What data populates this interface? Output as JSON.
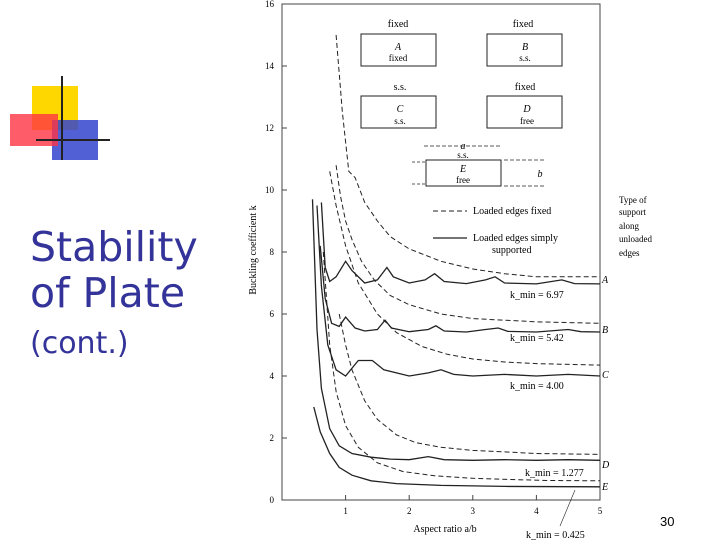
{
  "slide": {
    "title_line1": "Stability",
    "title_line2": "of Plate",
    "subtitle": "(cont.)",
    "page_number": "30"
  },
  "colors": {
    "title": "#333399",
    "logo_yellow": "#ffd700",
    "logo_red": "#ff3344",
    "logo_blue": "#3344cc",
    "curve": "#222222"
  },
  "chart_data": {
    "type": "line",
    "xlabel": "Aspect ratio a/b",
    "ylabel": "Buckling coefficient k",
    "xlim": [
      0,
      5
    ],
    "ylim": [
      0,
      16
    ],
    "x_ticks": [
      "1",
      "2",
      "3",
      "4",
      "5"
    ],
    "y_ticks": [
      "0",
      "2",
      "4",
      "6",
      "8",
      "10",
      "12",
      "14",
      "16"
    ],
    "legend": {
      "dashed": "Loaded edges fixed",
      "solid_line1": "Loaded edges simply",
      "solid_line2": "supported",
      "placement": "right"
    },
    "support_note": [
      "Type of",
      "support",
      "along",
      "unloaded",
      "edges"
    ],
    "cases": [
      {
        "letter": "A",
        "top": "fixed",
        "bottom": "fixed"
      },
      {
        "letter": "B",
        "top": "fixed",
        "bottom": "s.s."
      },
      {
        "letter": "C",
        "top": "s.s.",
        "bottom": "s.s."
      },
      {
        "letter": "D",
        "top": "fixed",
        "bottom": "free"
      },
      {
        "letter": "E",
        "top": "s.s.",
        "bottom": "free"
      }
    ],
    "plate_dims": {
      "a": "a",
      "b": "b"
    },
    "annotations": [
      {
        "label": "k_min = 6.97",
        "case": "A"
      },
      {
        "label": "k_min = 5.42",
        "case": "B"
      },
      {
        "label": "k_min = 4.00",
        "case": "C"
      },
      {
        "label": "k_min = 1.277",
        "case": "D"
      },
      {
        "label": "k_min = 0.425",
        "case": "E"
      }
    ],
    "series": [
      {
        "name": "A",
        "style": "solid",
        "points": [
          [
            0.62,
            9.6
          ],
          [
            0.68,
            7.5
          ],
          [
            0.75,
            7.05
          ],
          [
            0.85,
            7.2
          ],
          [
            1.0,
            7.7
          ],
          [
            1.1,
            7.4
          ],
          [
            1.3,
            7.0
          ],
          [
            1.5,
            7.1
          ],
          [
            1.65,
            7.5
          ],
          [
            1.75,
            7.2
          ],
          [
            2.0,
            7.0
          ],
          [
            2.25,
            7.1
          ],
          [
            2.4,
            7.3
          ],
          [
            2.55,
            7.05
          ],
          [
            2.9,
            6.98
          ],
          [
            3.2,
            7.1
          ],
          [
            3.35,
            7.2
          ],
          [
            3.5,
            7.0
          ],
          [
            4.0,
            6.97
          ],
          [
            4.4,
            7.1
          ],
          [
            4.6,
            6.98
          ],
          [
            5.0,
            6.97
          ]
        ]
      },
      {
        "name": "B",
        "style": "solid",
        "points": [
          [
            0.6,
            8.2
          ],
          [
            0.68,
            6.5
          ],
          [
            0.78,
            5.7
          ],
          [
            0.9,
            5.6
          ],
          [
            1.0,
            5.9
          ],
          [
            1.15,
            5.55
          ],
          [
            1.3,
            5.45
          ],
          [
            1.5,
            5.5
          ],
          [
            1.62,
            5.8
          ],
          [
            1.72,
            5.55
          ],
          [
            2.0,
            5.43
          ],
          [
            2.3,
            5.5
          ],
          [
            2.42,
            5.62
          ],
          [
            2.55,
            5.45
          ],
          [
            2.9,
            5.42
          ],
          [
            3.2,
            5.5
          ],
          [
            3.4,
            5.55
          ],
          [
            3.55,
            5.44
          ],
          [
            4.0,
            5.42
          ],
          [
            4.5,
            5.5
          ],
          [
            4.7,
            5.43
          ],
          [
            5.0,
            5.42
          ]
        ]
      },
      {
        "name": "C",
        "style": "solid",
        "points": [
          [
            0.55,
            9.5
          ],
          [
            0.62,
            6.9
          ],
          [
            0.72,
            5.0
          ],
          [
            0.85,
            4.2
          ],
          [
            1.0,
            4.0
          ],
          [
            1.2,
            4.5
          ],
          [
            1.42,
            4.5
          ],
          [
            1.6,
            4.2
          ],
          [
            2.0,
            4.0
          ],
          [
            2.3,
            4.1
          ],
          [
            2.5,
            4.2
          ],
          [
            2.7,
            4.05
          ],
          [
            3.0,
            4.0
          ],
          [
            3.5,
            4.05
          ],
          [
            4.0,
            4.0
          ],
          [
            4.5,
            4.05
          ],
          [
            5.0,
            4.0
          ]
        ]
      },
      {
        "name": "D",
        "style": "solid",
        "points": [
          [
            0.48,
            9.7
          ],
          [
            0.55,
            5.5
          ],
          [
            0.62,
            3.6
          ],
          [
            0.75,
            2.3
          ],
          [
            0.9,
            1.75
          ],
          [
            1.1,
            1.5
          ],
          [
            1.4,
            1.38
          ],
          [
            1.7,
            1.32
          ],
          [
            2.0,
            1.3
          ],
          [
            2.3,
            1.4
          ],
          [
            2.55,
            1.3
          ],
          [
            3.0,
            1.28
          ],
          [
            3.5,
            1.3
          ],
          [
            4.0,
            1.28
          ],
          [
            4.5,
            1.3
          ],
          [
            5.0,
            1.28
          ]
        ]
      },
      {
        "name": "E",
        "style": "solid",
        "points": [
          [
            0.5,
            3.0
          ],
          [
            0.6,
            2.2
          ],
          [
            0.75,
            1.5
          ],
          [
            0.9,
            1.05
          ],
          [
            1.1,
            0.8
          ],
          [
            1.4,
            0.62
          ],
          [
            1.8,
            0.53
          ],
          [
            2.5,
            0.47
          ],
          [
            3.5,
            0.44
          ],
          [
            5.0,
            0.425
          ]
        ]
      },
      {
        "name": "A (loaded edges fixed)",
        "style": "dashed",
        "points": [
          [
            0.85,
            15.0
          ],
          [
            0.95,
            12.5
          ],
          [
            1.05,
            10.6
          ],
          [
            1.15,
            10.4
          ],
          [
            1.3,
            9.6
          ],
          [
            1.5,
            9.0
          ],
          [
            1.7,
            8.5
          ],
          [
            2.0,
            8.1
          ],
          [
            2.5,
            7.7
          ],
          [
            3.0,
            7.45
          ],
          [
            3.5,
            7.3
          ],
          [
            4.0,
            7.2
          ],
          [
            4.5,
            7.2
          ],
          [
            5.0,
            7.2
          ]
        ]
      },
      {
        "name": "B (loaded edges fixed)",
        "style": "dashed",
        "points": [
          [
            0.85,
            10.8
          ],
          [
            0.92,
            9.8
          ],
          [
            1.0,
            9.0
          ],
          [
            1.1,
            8.4
          ],
          [
            1.25,
            7.7
          ],
          [
            1.45,
            7.1
          ],
          [
            1.7,
            6.6
          ],
          [
            2.0,
            6.3
          ],
          [
            2.5,
            6.0
          ],
          [
            3.0,
            5.85
          ],
          [
            3.5,
            5.8
          ],
          [
            4.0,
            5.75
          ],
          [
            5.0,
            5.7
          ]
        ]
      },
      {
        "name": "C (loaded edges fixed)",
        "style": "dashed",
        "points": [
          [
            0.75,
            10.6
          ],
          [
            0.85,
            9.5
          ],
          [
            1.0,
            8.2
          ],
          [
            1.2,
            7.0
          ],
          [
            1.5,
            6.0
          ],
          [
            1.8,
            5.4
          ],
          [
            2.2,
            4.95
          ],
          [
            2.6,
            4.7
          ],
          [
            3.0,
            4.55
          ],
          [
            3.5,
            4.45
          ],
          [
            4.0,
            4.4
          ],
          [
            5.0,
            4.35
          ]
        ]
      },
      {
        "name": "D (loaded edges fixed)",
        "style": "dashed",
        "points": [
          [
            0.9,
            6.0
          ],
          [
            1.0,
            5.0
          ],
          [
            1.1,
            4.2
          ],
          [
            1.3,
            3.2
          ],
          [
            1.5,
            2.6
          ],
          [
            1.8,
            2.1
          ],
          [
            2.1,
            1.85
          ],
          [
            2.5,
            1.7
          ],
          [
            3.0,
            1.6
          ],
          [
            3.5,
            1.55
          ],
          [
            4.0,
            1.5
          ],
          [
            5.0,
            1.47
          ]
        ]
      },
      {
        "name": "E (loaded edges fixed)",
        "style": "dashed",
        "points": [
          [
            0.65,
            8.0
          ],
          [
            0.75,
            5.0
          ],
          [
            0.85,
            3.5
          ],
          [
            1.0,
            2.4
          ],
          [
            1.2,
            1.7
          ],
          [
            1.5,
            1.2
          ],
          [
            1.9,
            0.92
          ],
          [
            2.4,
            0.78
          ],
          [
            3.0,
            0.7
          ],
          [
            3.6,
            0.66
          ],
          [
            4.2,
            0.63
          ],
          [
            5.0,
            0.62
          ]
        ]
      }
    ]
  }
}
